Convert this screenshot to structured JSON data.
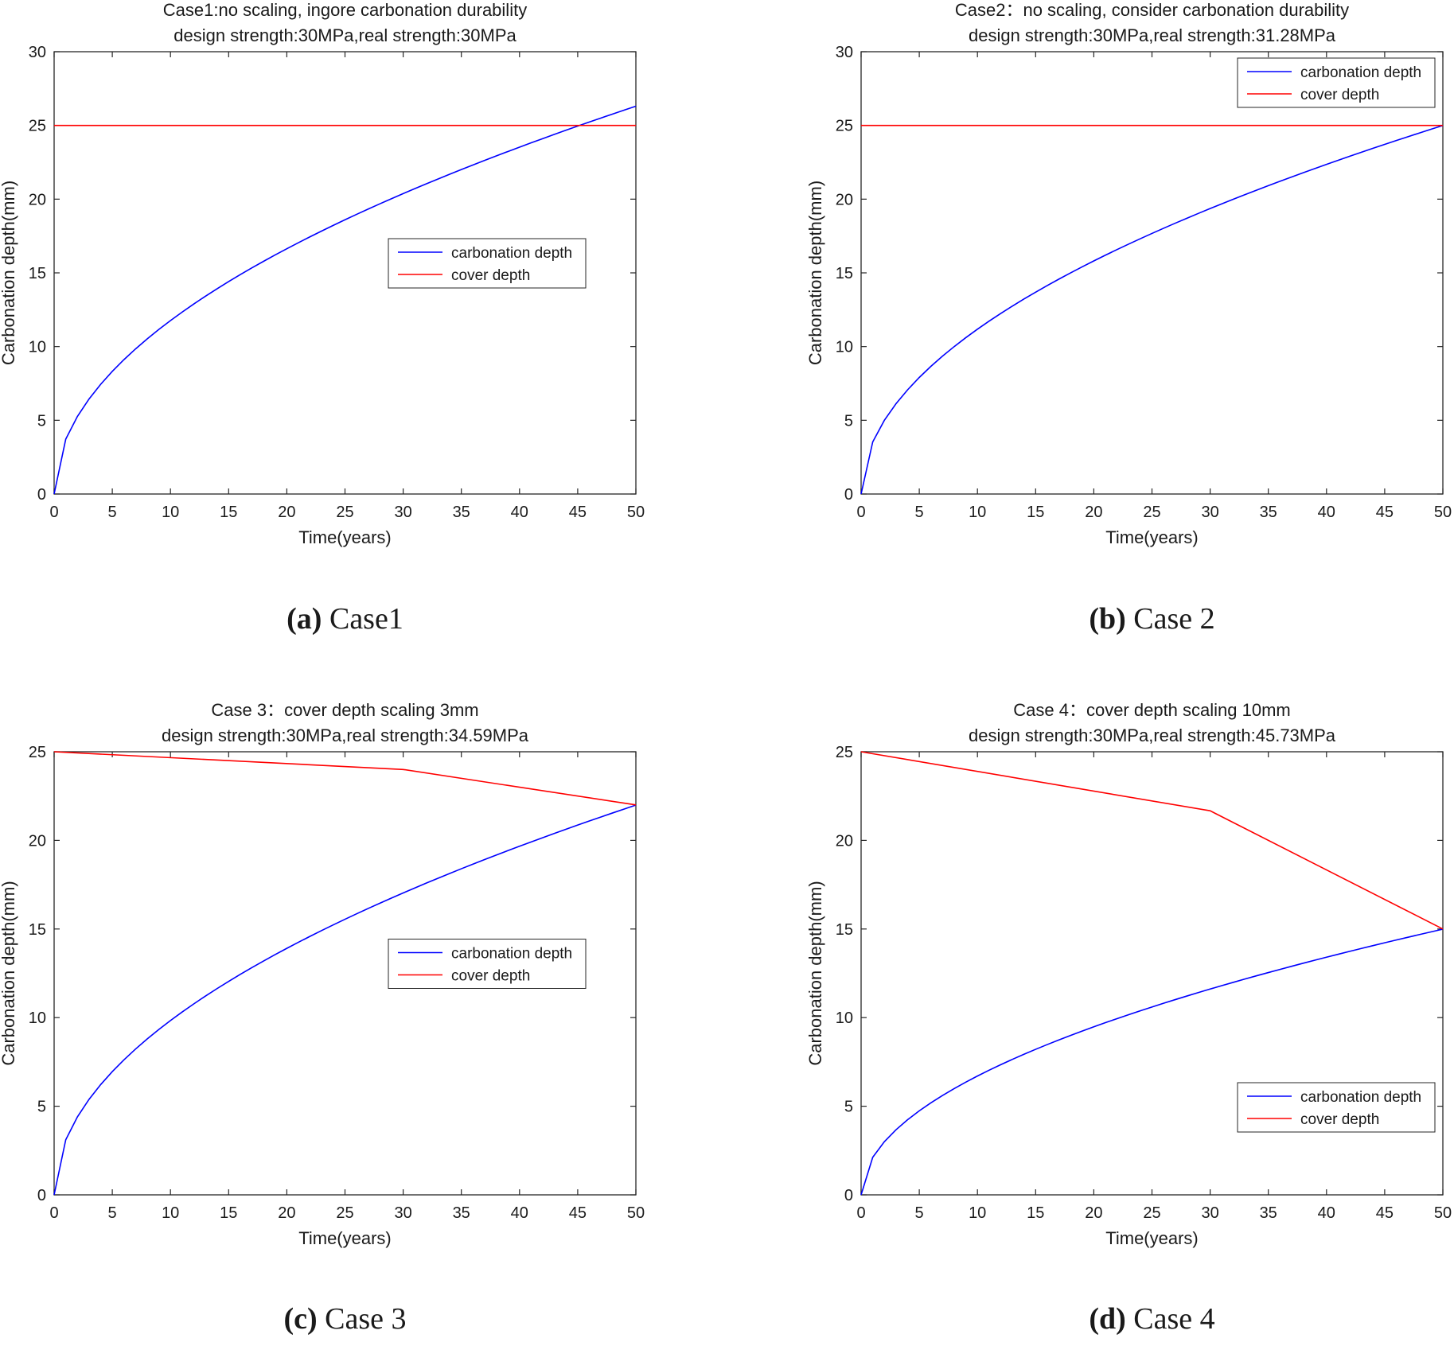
{
  "chart_data": [
    {
      "type": "line",
      "panel_label": "(a)",
      "caption": "Case1",
      "title_lines": [
        "Case1:no scaling, ingore carbonation durability",
        "design strength:30MPa,real strength:30MPa"
      ],
      "xlabel": "Time(years)",
      "ylabel": "Carbonation depth(mm)",
      "xlim": [
        0,
        50
      ],
      "ylim": [
        0,
        30
      ],
      "xticks": [
        0,
        5,
        10,
        15,
        20,
        25,
        30,
        35,
        40,
        45,
        50
      ],
      "yticks": [
        0,
        5,
        10,
        15,
        20,
        25,
        30
      ],
      "legend_position": "center-right",
      "series": [
        {
          "name": "carbonation depth",
          "color": "#0000ff",
          "model": "sqrt",
          "k": 3.72,
          "x_end": 50
        },
        {
          "name": "cover depth",
          "color": "#ff0000",
          "model": "piecewise",
          "x": [
            0,
            50
          ],
          "y": [
            25,
            25
          ]
        }
      ]
    },
    {
      "type": "line",
      "panel_label": "(b)",
      "caption": "Case 2",
      "title_lines": [
        "Case2：no scaling, consider carbonation durability",
        "design strength:30MPa,real strength:31.28MPa"
      ],
      "xlabel": "Time(years)",
      "ylabel": "Carbonation depth(mm)",
      "xlim": [
        0,
        50
      ],
      "ylim": [
        0,
        30
      ],
      "xticks": [
        0,
        5,
        10,
        15,
        20,
        25,
        30,
        35,
        40,
        45,
        50
      ],
      "yticks": [
        0,
        5,
        10,
        15,
        20,
        25,
        30
      ],
      "legend_position": "top-right",
      "series": [
        {
          "name": "carbonation depth",
          "color": "#0000ff",
          "model": "sqrt",
          "k": 3.535,
          "x_end": 50
        },
        {
          "name": "cover depth",
          "color": "#ff0000",
          "model": "piecewise",
          "x": [
            0,
            50
          ],
          "y": [
            25,
            25
          ]
        }
      ]
    },
    {
      "type": "line",
      "panel_label": "(c)",
      "caption": "Case 3",
      "title_lines": [
        "Case 3：cover depth scaling 3mm",
        "design strength:30MPa,real strength:34.59MPa"
      ],
      "xlabel": "Time(years)",
      "ylabel": "Carbonation depth(mm)",
      "xlim": [
        0,
        50
      ],
      "ylim": [
        0,
        25
      ],
      "xticks": [
        0,
        5,
        10,
        15,
        20,
        25,
        30,
        35,
        40,
        45,
        50
      ],
      "yticks": [
        0,
        5,
        10,
        15,
        20,
        25
      ],
      "legend_position": "center-right",
      "series": [
        {
          "name": "carbonation depth",
          "color": "#0000ff",
          "model": "sqrt",
          "k": 3.11,
          "x_end": 50
        },
        {
          "name": "cover depth",
          "color": "#ff0000",
          "model": "piecewise",
          "x": [
            0,
            30,
            50
          ],
          "y": [
            25,
            24,
            22
          ]
        }
      ]
    },
    {
      "type": "line",
      "panel_label": "(d)",
      "caption": "Case 4",
      "title_lines": [
        "Case 4：cover depth scaling 10mm",
        "design strength:30MPa,real strength:45.73MPa"
      ],
      "xlabel": "Time(years)",
      "ylabel": "Carbonation depth(mm)",
      "xlim": [
        0,
        50
      ],
      "ylim": [
        0,
        25
      ],
      "xticks": [
        0,
        5,
        10,
        15,
        20,
        25,
        30,
        35,
        40,
        45,
        50
      ],
      "yticks": [
        0,
        5,
        10,
        15,
        20,
        25
      ],
      "legend_position": "bottom-right",
      "series": [
        {
          "name": "carbonation depth",
          "color": "#0000ff",
          "model": "sqrt",
          "k": 2.12,
          "x_end": 50
        },
        {
          "name": "cover depth",
          "color": "#ff0000",
          "model": "piecewise",
          "x": [
            0,
            30,
            50
          ],
          "y": [
            25,
            21.67,
            15
          ]
        }
      ]
    }
  ]
}
